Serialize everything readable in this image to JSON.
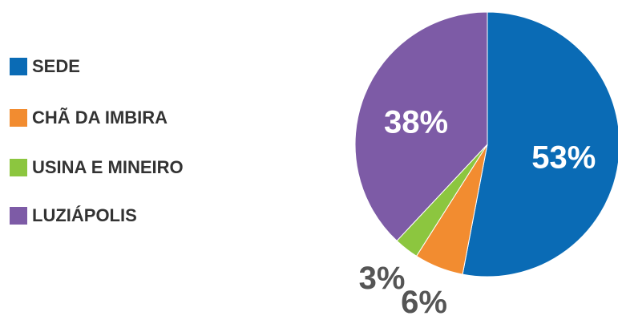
{
  "chart_data": {
    "type": "pie",
    "categories": [
      "SEDE",
      "CHÃ DA IMBIRA",
      "USINA E MINEIRO",
      "LUZIÁPOLIS"
    ],
    "values": [
      53,
      6,
      3,
      38
    ],
    "value_labels": [
      "53%",
      "6%",
      "3%",
      "38%"
    ],
    "colors": [
      "#0a6bb5",
      "#f28c30",
      "#8cc63f",
      "#7d5ba6"
    ],
    "legend": "left"
  }
}
